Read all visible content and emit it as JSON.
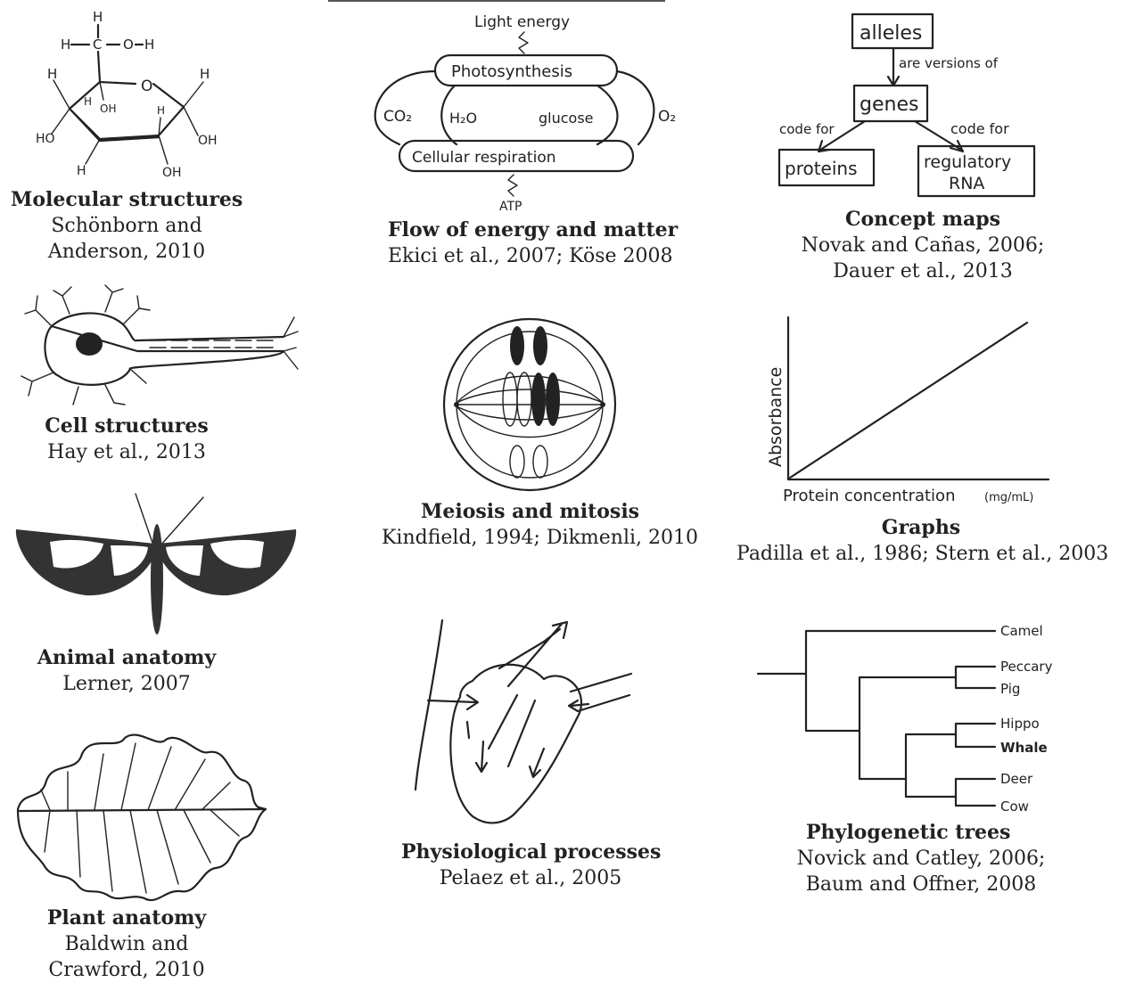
{
  "panels": {
    "molecular": {
      "title": "Molecular structures",
      "cite1": "Schönborn and",
      "cite2": "Anderson, 2010",
      "atoms": {
        "h_top": "H",
        "h_left": "H",
        "c": "C",
        "o_oh": "O",
        "h_oh": "H",
        "h_c1": "H",
        "h_c5": "H",
        "o_ring": "O",
        "oh_c4": "OH",
        "h_c4b": "H",
        "h_c3": "H",
        "ho_c2": "HO",
        "h_c2": "H",
        "oh_c3": "OH",
        "oh_c5": "OH"
      }
    },
    "energy": {
      "title": "Flow of energy and matter",
      "cite": "Ekici et al., 2007; Köse 2008",
      "labels": {
        "light": "Light energy",
        "photo": "Photosynthesis",
        "co2": "CO₂",
        "h2o": "H₂O",
        "glucose": "glucose",
        "resp": "Cellular respiration",
        "atp": "ATP",
        "o2": "O₂"
      }
    },
    "concept": {
      "title": "Concept maps",
      "cite1": "Novak and Cañas, 2006;",
      "cite2": "Dauer et al., 2013",
      "nodes": {
        "alleles": "alleles",
        "link1": "are versions of",
        "genes": "genes",
        "link2": "code for",
        "link3": "code for",
        "proteins": "proteins",
        "rna1": "regulatory",
        "rna2": "RNA"
      }
    },
    "cell": {
      "title": "Cell structures",
      "cite": "Hay et al., 2013"
    },
    "meiosis": {
      "title": "Meiosis and mitosis",
      "cite": "Kindfield, 1994; Dikmenli, 2010"
    },
    "graph": {
      "title": "Graphs",
      "cite": "Padilla et al., 1986; Stern et al., 2003",
      "ylabel": "Absorbance",
      "xlabel": "Protein concentration",
      "xunit": "(mg/mL)"
    },
    "animal": {
      "title": "Animal anatomy",
      "cite": "Lerner, 2007"
    },
    "physio": {
      "title": "Physiological processes",
      "cite": "Pelaez et al., 2005"
    },
    "phylo": {
      "title": "Phylogenetic trees",
      "cite1": "Novick and Catley, 2006;",
      "cite2": "Baum and Offner, 2008",
      "taxa": [
        "Camel",
        "Peccary",
        "Pig",
        "Hippo",
        "Whale",
        "Deer",
        "Cow"
      ]
    },
    "plant": {
      "title": "Plant anatomy",
      "cite1": "Baldwin and",
      "cite2": "Crawford, 2010"
    }
  }
}
